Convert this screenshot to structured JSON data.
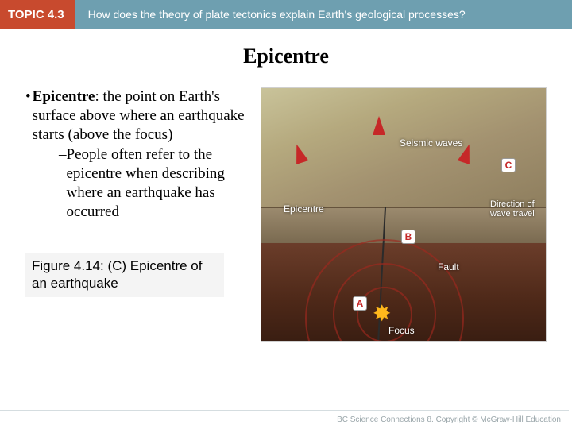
{
  "header": {
    "topic_label": "TOPIC 4.3",
    "question": "How does the theory of plate tectonics explain Earth's geological processes?"
  },
  "title": "Epicentre",
  "body": {
    "term": "Epicentre",
    "definition_rest": ": the point on Earth's surface above where an earthquake starts (above the focus)",
    "sub_point": "People often refer to the epicentre when describing where an earthquake has occurred"
  },
  "figure_caption": "Figure 4.14: (C) Epicentre of an earthquake",
  "diagram": {
    "type": "infographic",
    "surface_gradient": [
      "#c9c39a",
      "#8e7e5e"
    ],
    "crust_gradient": [
      "#9b8a6e",
      "#7a6a50"
    ],
    "mantle_gradient": [
      "#6b3d2a",
      "#3a1e12"
    ],
    "ring_color": "#a0281e",
    "arrow_color": "#c62828",
    "focus_star_color": "#ffb81c",
    "labels": {
      "seismic": "Seismic waves",
      "epicentre": "Epicentre",
      "fault": "Fault",
      "focus": "Focus",
      "direction": "Direction of wave travel"
    },
    "letters": {
      "A": "A",
      "B": "B",
      "C": "C"
    }
  },
  "footer": "BC Science Connections 8. Copyright © McGraw-Hill Education"
}
